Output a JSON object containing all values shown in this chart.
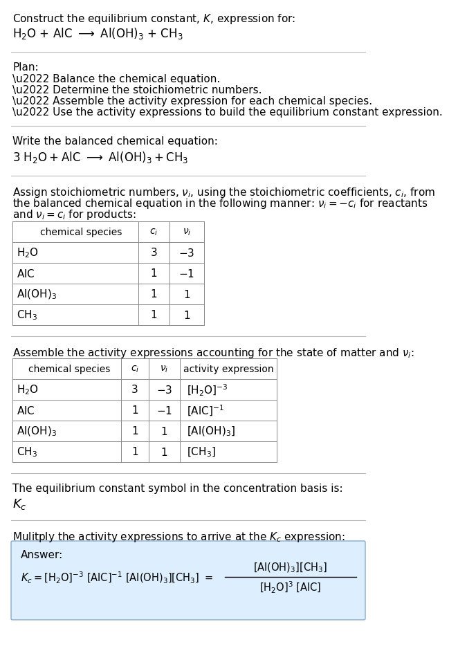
{
  "bg_color": "#ffffff",
  "text_color": "#000000",
  "table_line_color": "#888888",
  "font_size": 11,
  "sections": {
    "s1_line1": "Construct the equilibrium constant, $K$, expression for:",
    "s1_line2_parts": [
      "$\\mathrm{H_2O}$",
      " + AlC ",
      "$\\longrightarrow$",
      " $\\mathrm{Al(OH)_3}$",
      " + $\\mathrm{CH_3}$"
    ],
    "plan_header": "Plan:",
    "plan_items": [
      "\\u2022 Balance the chemical equation.",
      "\\u2022 Determine the stoichiometric numbers.",
      "\\u2022 Assemble the activity expression for each chemical species.",
      "\\u2022 Use the activity expressions to build the equilibrium constant expression."
    ],
    "bal_header": "Write the balanced chemical equation:",
    "bal_eq_parts": [
      "$\\mathrm{3\\ H_2O + AlC}$",
      " $\\longrightarrow$ ",
      "$\\mathrm{Al(OH)_3 + CH_3}$"
    ],
    "stoich_intro": [
      "Assign stoichiometric numbers, $\\nu_i$, using the stoichiometric coefficients, $c_i$, from",
      "the balanced chemical equation in the following manner: $\\nu_i = -c_i$ for reactants",
      "and $\\nu_i = c_i$ for products:"
    ],
    "table1_headers": [
      "chemical species",
      "$c_i$",
      "$\\nu_i$"
    ],
    "table1_rows": [
      [
        "$\\mathrm{H_2O}$",
        "3",
        "$-3$"
      ],
      [
        "$\\mathrm{AlC}$",
        "1",
        "$-1$"
      ],
      [
        "$\\mathrm{Al(OH)_3}$",
        "1",
        "$1$"
      ],
      [
        "$\\mathrm{CH_3}$",
        "1",
        "$1$"
      ]
    ],
    "assemble_header": "Assemble the activity expressions accounting for the state of matter and $\\nu_i$:",
    "table2_headers": [
      "chemical species",
      "$c_i$",
      "$\\nu_i$",
      "activity expression"
    ],
    "table2_rows": [
      [
        "$\\mathrm{H_2O}$",
        "3",
        "$-3$",
        "$[\\mathrm{H_2O}]^{-3}$"
      ],
      [
        "$\\mathrm{AlC}$",
        "1",
        "$-1$",
        "$[\\mathrm{AlC}]^{-1}$"
      ],
      [
        "$\\mathrm{Al(OH)_3}$",
        "1",
        "$1$",
        "$[\\mathrm{Al(OH)_3}]$"
      ],
      [
        "$\\mathrm{CH_3}$",
        "1",
        "$1$",
        "$[\\mathrm{CH_3}]$"
      ]
    ],
    "kc_text": "The equilibrium constant symbol in the concentration basis is:",
    "kc_symbol": "$K_c$",
    "multiply_text": "Mulitply the activity expressions to arrive at the $K_c$ expression:",
    "answer_label": "Answer:",
    "answer_box_color": "#ddeeff",
    "answer_box_edge": "#88aacc"
  }
}
